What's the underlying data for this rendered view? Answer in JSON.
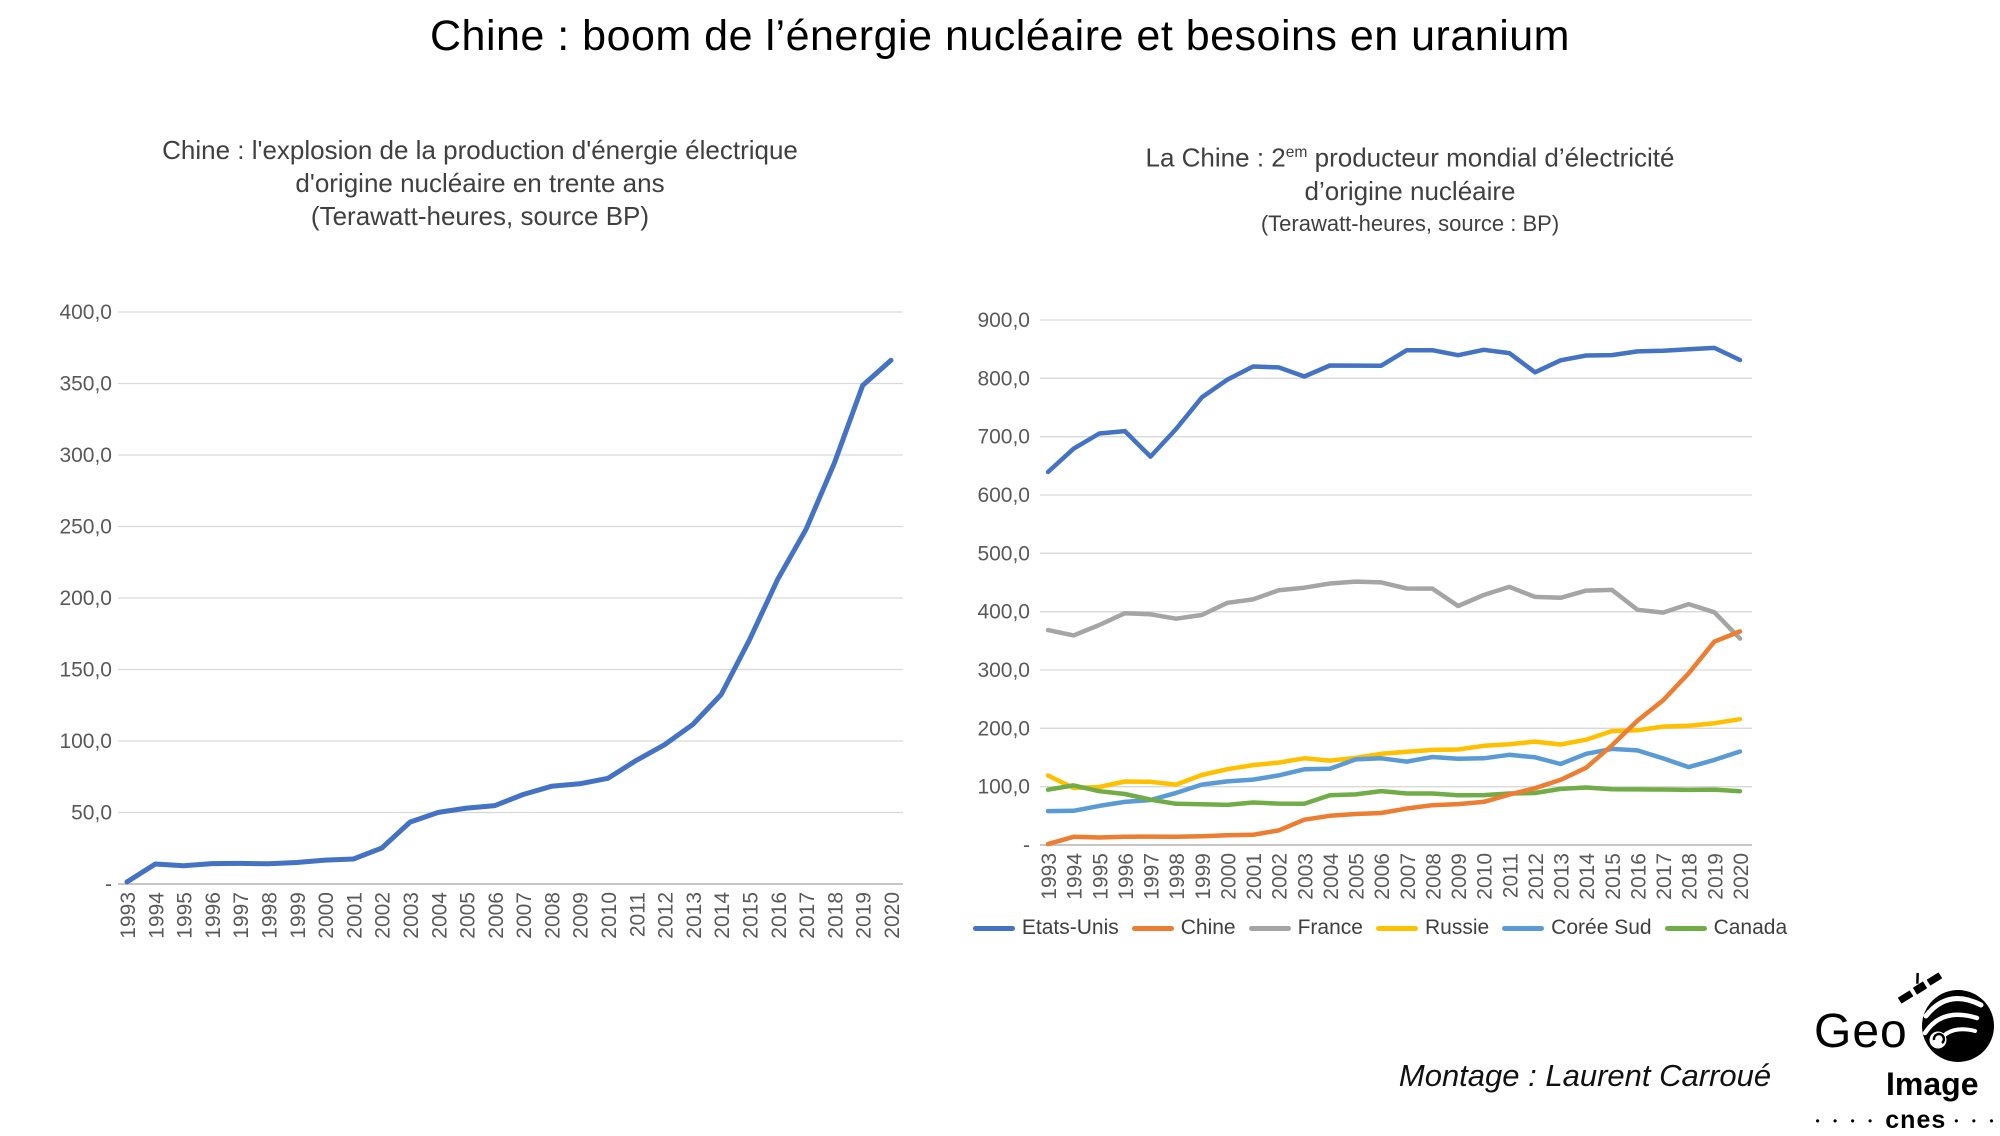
{
  "header": {
    "title": "Chine : boom de l’énergie nucléaire et besoins en uranium"
  },
  "chart_data": [
    {
      "type": "line",
      "title_lines": [
        "Chine : l'explosion de la production d'énergie électrique",
        "d'origine nucléaire en trente ans",
        "(Terawatt-heures, source BP)"
      ],
      "unit": "Terawatt-heures",
      "source": "BP",
      "x": [
        "1993",
        "1994",
        "1995",
        "1996",
        "1997",
        "1998",
        "1999",
        "2000",
        "2001",
        "2002",
        "2003",
        "2004",
        "2005",
        "2006",
        "2007",
        "2008",
        "2009",
        "2010",
        "2011",
        "2012",
        "2013",
        "2014",
        "2015",
        "2016",
        "2017",
        "2018",
        "2019",
        "2020"
      ],
      "ylim": [
        0,
        400
      ],
      "ytick_step": 50,
      "zero_tick_label": "-",
      "grid": true,
      "series": [
        {
          "name": "Chine",
          "color": "#4472C4",
          "values": [
            1.5,
            14.0,
            12.8,
            14.3,
            14.4,
            14.1,
            15.0,
            16.7,
            17.5,
            25.1,
            43.3,
            50.1,
            53.1,
            54.8,
            62.6,
            68.3,
            70.1,
            73.9,
            86.4,
            97.4,
            111.6,
            132.5,
            170.8,
            213.2,
            248.1,
            294.4,
            348.7,
            366.2
          ]
        }
      ]
    },
    {
      "type": "line",
      "title_line1": {
        "pre": "La Chine : 2",
        "sup": "em",
        "post": " producteur mondial d’électricité"
      },
      "title_lines": [
        "d’origine nucléaire",
        "(Terawatt-heures, source : BP)"
      ],
      "unit": "Terawatt-heures",
      "source": "BP",
      "x": [
        "1993",
        "1994",
        "1995",
        "1996",
        "1997",
        "1998",
        "1999",
        "2000",
        "2001",
        "2002",
        "2003",
        "2004",
        "2005",
        "2006",
        "2007",
        "2008",
        "2009",
        "2010",
        "2011",
        "2012",
        "2013",
        "2014",
        "2015",
        "2016",
        "2017",
        "2018",
        "2019",
        "2020"
      ],
      "ylim": [
        0,
        900
      ],
      "ytick_step": 100,
      "zero_tick_label": "-",
      "grid": true,
      "legend_position": "bottom",
      "series": [
        {
          "name": "Etats-Unis",
          "color": "#4472C4",
          "values": [
            639.4,
            679.3,
            705.4,
            709.5,
            665.9,
            713.2,
            767.3,
            797.9,
            820.3,
            818.8,
            803.1,
            822.0,
            821.9,
            821.6,
            848.3,
            848.3,
            839.7,
            848.9,
            843.2,
            810.3,
            831.0,
            839.2,
            839.9,
            846.1,
            847.3,
            849.8,
            852.2,
            831.5
          ]
        },
        {
          "name": "Chine",
          "color": "#ED7D31",
          "values": [
            1.5,
            14.0,
            12.8,
            14.3,
            14.4,
            14.1,
            15.0,
            16.7,
            17.5,
            25.1,
            43.3,
            50.1,
            53.1,
            54.8,
            62.6,
            68.3,
            70.1,
            73.9,
            86.4,
            97.4,
            111.6,
            132.5,
            170.8,
            213.2,
            248.1,
            294.4,
            348.7,
            366.2
          ]
        },
        {
          "name": "France",
          "color": "#A5A5A5",
          "values": [
            368.4,
            359.3,
            377.2,
            397.3,
            395.5,
            387.9,
            394.2,
            415.2,
            421.1,
            436.8,
            441.1,
            448.2,
            451.5,
            450.2,
            439.7,
            439.5,
            409.7,
            428.5,
            442.4,
            425.4,
            423.7,
            436.1,
            437.4,
            403.2,
            398.4,
            412.9,
            399.0,
            353.8
          ]
        },
        {
          "name": "Russie",
          "color": "#FFC000",
          "values": [
            119.2,
            97.8,
            99.5,
            108.8,
            108.3,
            103.5,
            120.0,
            129.9,
            136.9,
            141.2,
            148.6,
            144.7,
            149.4,
            156.4,
            159.8,
            163.1,
            163.8,
            170.1,
            172.7,
            177.3,
            172.2,
            180.5,
            195.2,
            196.6,
            202.9,
            204.5,
            208.8,
            215.7
          ]
        },
        {
          "name": "Corée Sud",
          "color": "#5B9BD5",
          "values": [
            58.1,
            58.7,
            67.0,
            73.9,
            77.1,
            89.4,
            103.5,
            109.0,
            112.1,
            119.3,
            129.7,
            130.7,
            146.8,
            148.7,
            142.9,
            150.9,
            147.7,
            148.6,
            154.7,
            150.3,
            138.8,
            156.4,
            164.7,
            162.2,
            148.4,
            133.5,
            145.9,
            160.2
          ]
        },
        {
          "name": "Canada",
          "color": "#70AD47",
          "values": [
            94.8,
            102.2,
            92.3,
            87.5,
            77.9,
            70.6,
            69.8,
            68.7,
            72.9,
            71.0,
            70.7,
            85.2,
            86.8,
            92.4,
            88.2,
            88.3,
            85.3,
            85.5,
            88.3,
            89.1,
            96.1,
            98.5,
            95.6,
            95.4,
            95.1,
            94.4,
            94.9,
            92.2
          ]
        }
      ]
    }
  ],
  "footer": {
    "credit": "Montage : Laurent Carroué"
  },
  "logo": {
    "geo": "Geo",
    "image": "Image",
    "cnes": "cnes",
    "dots_left": "• • • •",
    "dots_right": "• • •"
  }
}
